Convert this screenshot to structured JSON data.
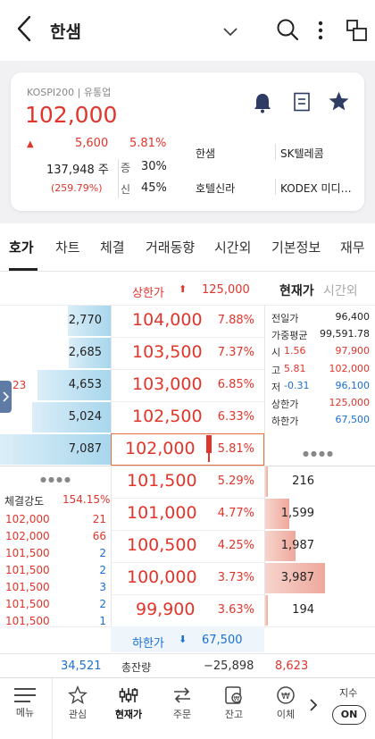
{
  "header": {
    "title": "한샘"
  },
  "stock": {
    "market": "KOSPI200 | 유통업",
    "price": "102,000",
    "change": "5,600",
    "rate": "5.81%",
    "volume": "137,948 주",
    "volume_ratio": "(259.79%)",
    "margin_label": "증",
    "margin_value": "30%",
    "credit_label": "신",
    "credit_value": "45%",
    "related": [
      "한샘",
      "SK텔레콤",
      "호텔신라",
      "KODEX 미디…"
    ]
  },
  "tabs": [
    "호가",
    "차트",
    "체결",
    "거래동향",
    "시간외",
    "기본정보",
    "재무"
  ],
  "orderbook": {
    "upper_limit_label": "상한가",
    "upper_limit_value": "125,000",
    "lower_limit_label": "하한가",
    "lower_limit_value": "67,500",
    "current_tab": "현재가",
    "after_hours_tab": "시간외",
    "ask": [
      {
        "qty": "2,770",
        "price": "104,000",
        "rate": "7.88%",
        "bar": 0.39
      },
      {
        "qty": "2,685",
        "price": "103,500",
        "rate": "7.37%",
        "bar": 0.38
      },
      {
        "qty": "4,653",
        "price": "103,000",
        "rate": "6.85%",
        "bar": 0.66
      },
      {
        "qty": "5,024",
        "price": "102,500",
        "rate": "6.33%",
        "bar": 0.71
      },
      {
        "qty": "7,087",
        "price": "102,000",
        "rate": "5.81%",
        "bar": 1.0
      }
    ],
    "ask_side_tab": "23",
    "bid": [
      {
        "qty": "216",
        "price": "101,500",
        "rate": "5.29%",
        "bar": 0.05
      },
      {
        "qty": "1,599",
        "price": "101,000",
        "rate": "4.77%",
        "bar": 0.4
      },
      {
        "qty": "1,987",
        "price": "100,500",
        "rate": "4.25%",
        "bar": 0.5
      },
      {
        "qty": "3,987",
        "price": "100,000",
        "rate": "3.73%",
        "bar": 1.0
      },
      {
        "qty": "194",
        "price": "99,900",
        "rate": "3.63%",
        "bar": 0.05
      }
    ],
    "summary": [
      {
        "label": "전일가",
        "value": "96,400"
      },
      {
        "label": "가중평균",
        "value": "99,591.78"
      },
      {
        "label": "시",
        "rate": "1.56",
        "value": "97,900"
      },
      {
        "label": "고",
        "rate": "5.81",
        "value": "102,000"
      },
      {
        "label": "저",
        "rate": "-0.31",
        "value": "96,100"
      },
      {
        "label": "상한가",
        "value": "125,000"
      },
      {
        "label": "하한가",
        "value": "67,500"
      }
    ],
    "strength_label": "체결강도",
    "strength_value": "154.15%",
    "trades": [
      {
        "price": "102,000",
        "qty": "21"
      },
      {
        "price": "102,000",
        "qty": "66"
      },
      {
        "price": "101,500",
        "qty": "2"
      },
      {
        "price": "101,500",
        "qty": "2"
      },
      {
        "price": "101,500",
        "qty": "3"
      },
      {
        "price": "101,500",
        "qty": "2"
      },
      {
        "price": "101,500",
        "qty": "1"
      }
    ],
    "total_ask": "34,521",
    "total_label": "총잔량",
    "total_diff": "−25,898",
    "total_bid": "8,623"
  },
  "bottom_nav": {
    "menu": "메뉴",
    "items": [
      "관심",
      "현재가",
      "주문",
      "잔고",
      "이체"
    ],
    "index_label": "지수",
    "index_toggle": "ON"
  },
  "colors": {
    "up": "#e0352b",
    "down": "#1a6fd1",
    "ask_bar": "#a8d6ec",
    "bid_bar": "#eea89c"
  }
}
